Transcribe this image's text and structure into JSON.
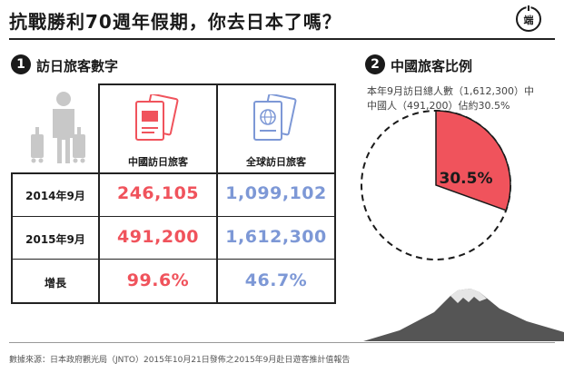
{
  "header": {
    "title": "抗戰勝利70週年假期，你去日本了嗎？",
    "logo_text": "端"
  },
  "section1": {
    "number": "1",
    "title": "訪日旅客數字",
    "columns": [
      "中國訪日旅客",
      "全球訪日旅客"
    ],
    "rows": [
      {
        "label": "2014年9月",
        "china": "246,105",
        "global": "1,099,102"
      },
      {
        "label": "2015年9月",
        "china": "491,200",
        "global": "1,612,300"
      },
      {
        "label": "增長",
        "china": "99.6%",
        "global": "46.7%"
      }
    ]
  },
  "section2": {
    "number": "2",
    "title": "中國旅客比例",
    "desc_line1": "本年9月訪日總人數（1,612,300）中",
    "desc_line2": "中國人（491,200）佔約30.5%"
  },
  "footer": {
    "source": "數據來源：日本政府觀光局（JNTO）2015年10月21日發佈之2015年9月赴日遊客推計值報告"
  },
  "colors": {
    "china_red": "#f0535c",
    "global_blue": "#7d98d6",
    "mountain": "#555555"
  },
  "chart_data": [
    {
      "type": "table",
      "title": "訪日旅客數字",
      "columns": [
        "中國訪日旅客",
        "全球訪日旅客"
      ],
      "categories": [
        "2014年9月",
        "2015年9月",
        "增長"
      ],
      "series": [
        {
          "name": "中國訪日旅客",
          "values": [
            246105,
            491200,
            99.6
          ]
        },
        {
          "name": "全球訪日旅客",
          "values": [
            1099102,
            1612300,
            46.7
          ]
        }
      ]
    },
    {
      "type": "pie",
      "title": "中國旅客比例",
      "slices": [
        {
          "value": 30.5,
          "label": "30.5%",
          "color": "#f0535c"
        },
        {
          "value": 69.5,
          "label": "",
          "color": "#ffffff"
        }
      ]
    }
  ]
}
